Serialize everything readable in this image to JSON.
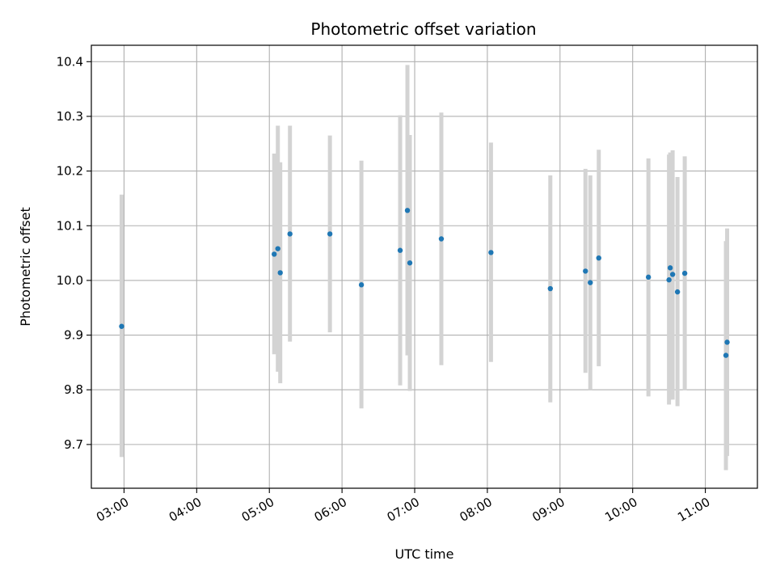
{
  "chart_data": {
    "type": "scatter",
    "title": "Photometric offset variation",
    "xlabel": "UTC time",
    "ylabel": "Photometric offset",
    "grid": true,
    "x_tick_labels": [
      "03:00",
      "04:00",
      "05:00",
      "06:00",
      "07:00",
      "08:00",
      "09:00",
      "10:00",
      "11:00"
    ],
    "y_tick_labels": [
      "9.7",
      "9.8",
      "9.9",
      "10.0",
      "10.1",
      "10.2",
      "10.3",
      "10.4"
    ],
    "xlim": [
      "02:33",
      "11:43"
    ],
    "ylim": [
      9.62,
      10.43
    ],
    "colors": {
      "point": "#1f77b4",
      "errorbar": "#d3d3d3",
      "grid": "#b0b0b0"
    },
    "points": [
      {
        "x": "02:58",
        "y": 9.916,
        "low": 9.677,
        "high": 10.157
      },
      {
        "x": "05:04",
        "y": 10.048,
        "low": 9.865,
        "high": 10.232
      },
      {
        "x": "05:07",
        "y": 10.058,
        "low": 9.833,
        "high": 10.283
      },
      {
        "x": "05:09",
        "y": 10.014,
        "low": 9.812,
        "high": 10.216
      },
      {
        "x": "05:17",
        "y": 10.085,
        "low": 9.888,
        "high": 10.283
      },
      {
        "x": "05:50",
        "y": 10.085,
        "low": 9.905,
        "high": 10.265
      },
      {
        "x": "06:16",
        "y": 9.992,
        "low": 9.766,
        "high": 10.219
      },
      {
        "x": "06:48",
        "y": 10.055,
        "low": 9.808,
        "high": 10.302
      },
      {
        "x": "06:54",
        "y": 10.128,
        "low": 9.863,
        "high": 10.394
      },
      {
        "x": "06:56",
        "y": 10.032,
        "low": 9.798,
        "high": 10.266
      },
      {
        "x": "07:22",
        "y": 10.076,
        "low": 9.845,
        "high": 10.307
      },
      {
        "x": "08:03",
        "y": 10.051,
        "low": 9.851,
        "high": 10.252
      },
      {
        "x": "08:52",
        "y": 9.985,
        "low": 9.777,
        "high": 10.192
      },
      {
        "x": "09:21",
        "y": 10.017,
        "low": 9.831,
        "high": 10.204
      },
      {
        "x": "09:25",
        "y": 9.996,
        "low": 9.8,
        "high": 10.192
      },
      {
        "x": "09:32",
        "y": 10.041,
        "low": 9.843,
        "high": 10.239
      },
      {
        "x": "10:13",
        "y": 10.006,
        "low": 9.788,
        "high": 10.223
      },
      {
        "x": "10:30",
        "y": 10.001,
        "low": 9.773,
        "high": 10.23
      },
      {
        "x": "10:31",
        "y": 10.023,
        "low": 9.782,
        "high": 10.234
      },
      {
        "x": "10:33",
        "y": 10.011,
        "low": 9.782,
        "high": 10.238
      },
      {
        "x": "10:37",
        "y": 9.979,
        "low": 9.77,
        "high": 10.189
      },
      {
        "x": "10:43",
        "y": 10.013,
        "low": 9.799,
        "high": 10.227
      },
      {
        "x": "11:17",
        "y": 9.863,
        "low": 9.653,
        "high": 10.072
      },
      {
        "x": "11:18",
        "y": 9.887,
        "low": 9.679,
        "high": 10.095
      }
    ]
  }
}
